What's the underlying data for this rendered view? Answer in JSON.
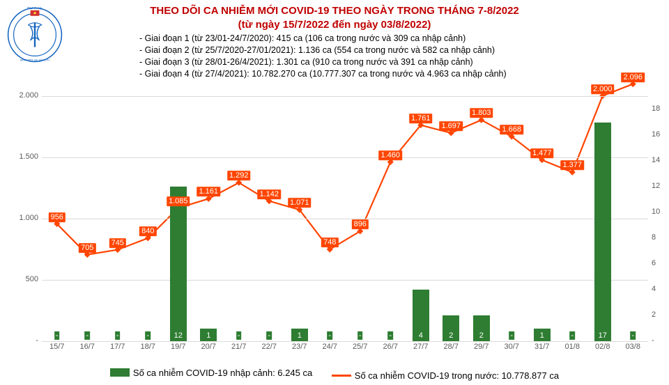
{
  "logo": {
    "top_text": "BỘ Y TẾ",
    "bottom_text": "MINISTRY OF HEALTH",
    "stroke": "#1565c0",
    "flag_bg": "#d32f2f",
    "star": "#ffeb3b"
  },
  "title": {
    "line1": "THEO DÕI CA NHIỄM MỚI COVID-19 THEO NGÀY TRONG THÁNG 7-8/2022",
    "line2": "(từ ngày 15/7/2022 đến ngày 03/8/2022)",
    "color": "#c00000",
    "fontsize": 15
  },
  "subtitles": [
    "- Giai đoạn 1 (từ 23/01-24/7/2020): 415 ca (106 ca trong nước và 309 ca nhập cảnh)",
    "- Giai đoạn 2 (từ 25/7/2020-27/01/2021): 1.136 ca (554 ca trong nước và 582 ca nhập cảnh)",
    "- Giai đoạn 3 (từ 28/01-26/4/2021): 1.301 ca (910 ca trong nước và 391 ca nhập cảnh)",
    "- Giai đoạn 4 (từ 27/4/2021): 10.782.270 ca (10.777.307 ca trong nước và 4.963 ca nhập cảnh)"
  ],
  "chart": {
    "type": "combo-bar-line",
    "background_color": "#ffffff",
    "grid_color": "#d9d9d9",
    "categories": [
      "15/7",
      "16/7",
      "17/7",
      "18/7",
      "19/7",
      "20/7",
      "21/7",
      "22/7",
      "23/7",
      "24/7",
      "25/7",
      "26/7",
      "27/7",
      "28/7",
      "29/7",
      "30/7",
      "31/7",
      "01/8",
      "02/8",
      "03/8"
    ],
    "bars": {
      "values_display": [
        "-",
        "-",
        "-",
        "-",
        "12",
        "1",
        "-",
        "-",
        "1",
        "-",
        "-",
        "-",
        "4",
        "2",
        "2",
        "-",
        "1",
        "-",
        "17",
        "-"
      ],
      "values": [
        0,
        0,
        0,
        0,
        12,
        1,
        0,
        0,
        1,
        0,
        0,
        0,
        4,
        2,
        2,
        0,
        1,
        0,
        17,
        0
      ],
      "color": "#2e7d32",
      "bar_width_frac": 0.55,
      "axis": "right"
    },
    "line": {
      "values_display": [
        "956",
        "705",
        "745",
        "840",
        "1.085",
        "1.161",
        "1.292",
        "1.142",
        "1.071",
        "748",
        "896",
        "1.460",
        "1.761",
        "1.697",
        "1.803",
        "1.668",
        "1.477",
        "1.377",
        "2.000",
        "2.096"
      ],
      "values": [
        956,
        705,
        745,
        840,
        1085,
        1161,
        1292,
        1142,
        1071,
        748,
        896,
        1460,
        1761,
        1697,
        1803,
        1668,
        1477,
        1377,
        2000,
        2096
      ],
      "color": "#ff4500",
      "marker": "diamond",
      "line_width": 2.2,
      "axis": "left"
    },
    "y_left": {
      "min": 0,
      "max": 2100,
      "ticks": [
        0,
        500,
        1000,
        1500,
        2000
      ],
      "tick_labels": [
        "-",
        "500",
        "1.000",
        "1.500",
        "2.000"
      ]
    },
    "y_right": {
      "min": 0,
      "max": 20,
      "ticks": [
        0,
        2,
        4,
        6,
        8,
        10,
        12,
        14,
        16,
        18
      ],
      "tick_labels": [
        "-",
        "2",
        "4",
        "6",
        "8",
        "10",
        "12",
        "14",
        "16",
        "18"
      ]
    },
    "label_fontsize": 11,
    "axis_color": "#595959"
  },
  "legend": {
    "bar": {
      "label": "Số ca nhiễm COVID-19 nhập cảnh: 6.245 ca",
      "color": "#2e7d32"
    },
    "line": {
      "label": "Số ca nhiễm COVID-19 trong nước: 10.778.877 ca",
      "color": "#ff4500"
    }
  }
}
